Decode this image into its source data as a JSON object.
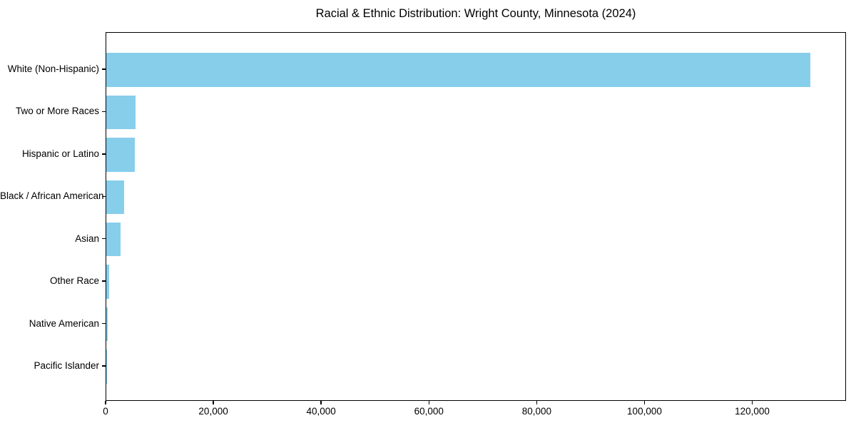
{
  "chart_data": {
    "type": "bar",
    "orientation": "horizontal",
    "title": "Racial & Ethnic Distribution: Wright County, Minnesota (2024)",
    "categories": [
      "White (Non-Hispanic)",
      "Two or More Races",
      "Hispanic or Latino",
      "Black / African American",
      "Asian",
      "Other Race",
      "Native American",
      "Pacific Islander"
    ],
    "values": [
      130700,
      5400,
      5300,
      3300,
      2650,
      500,
      250,
      50
    ],
    "xlabel": "",
    "ylabel": "",
    "xlim": [
      0,
      137400
    ],
    "x_ticks": [
      0,
      20000,
      40000,
      60000,
      80000,
      100000,
      120000
    ],
    "x_tick_labels": [
      "0",
      "20,000",
      "40,000",
      "60,000",
      "80,000",
      "100,000",
      "120,000"
    ],
    "bar_color": "#87CEEB",
    "spine_color": "#000000",
    "background_color": "#ffffff",
    "grid": false,
    "legend": null
  }
}
